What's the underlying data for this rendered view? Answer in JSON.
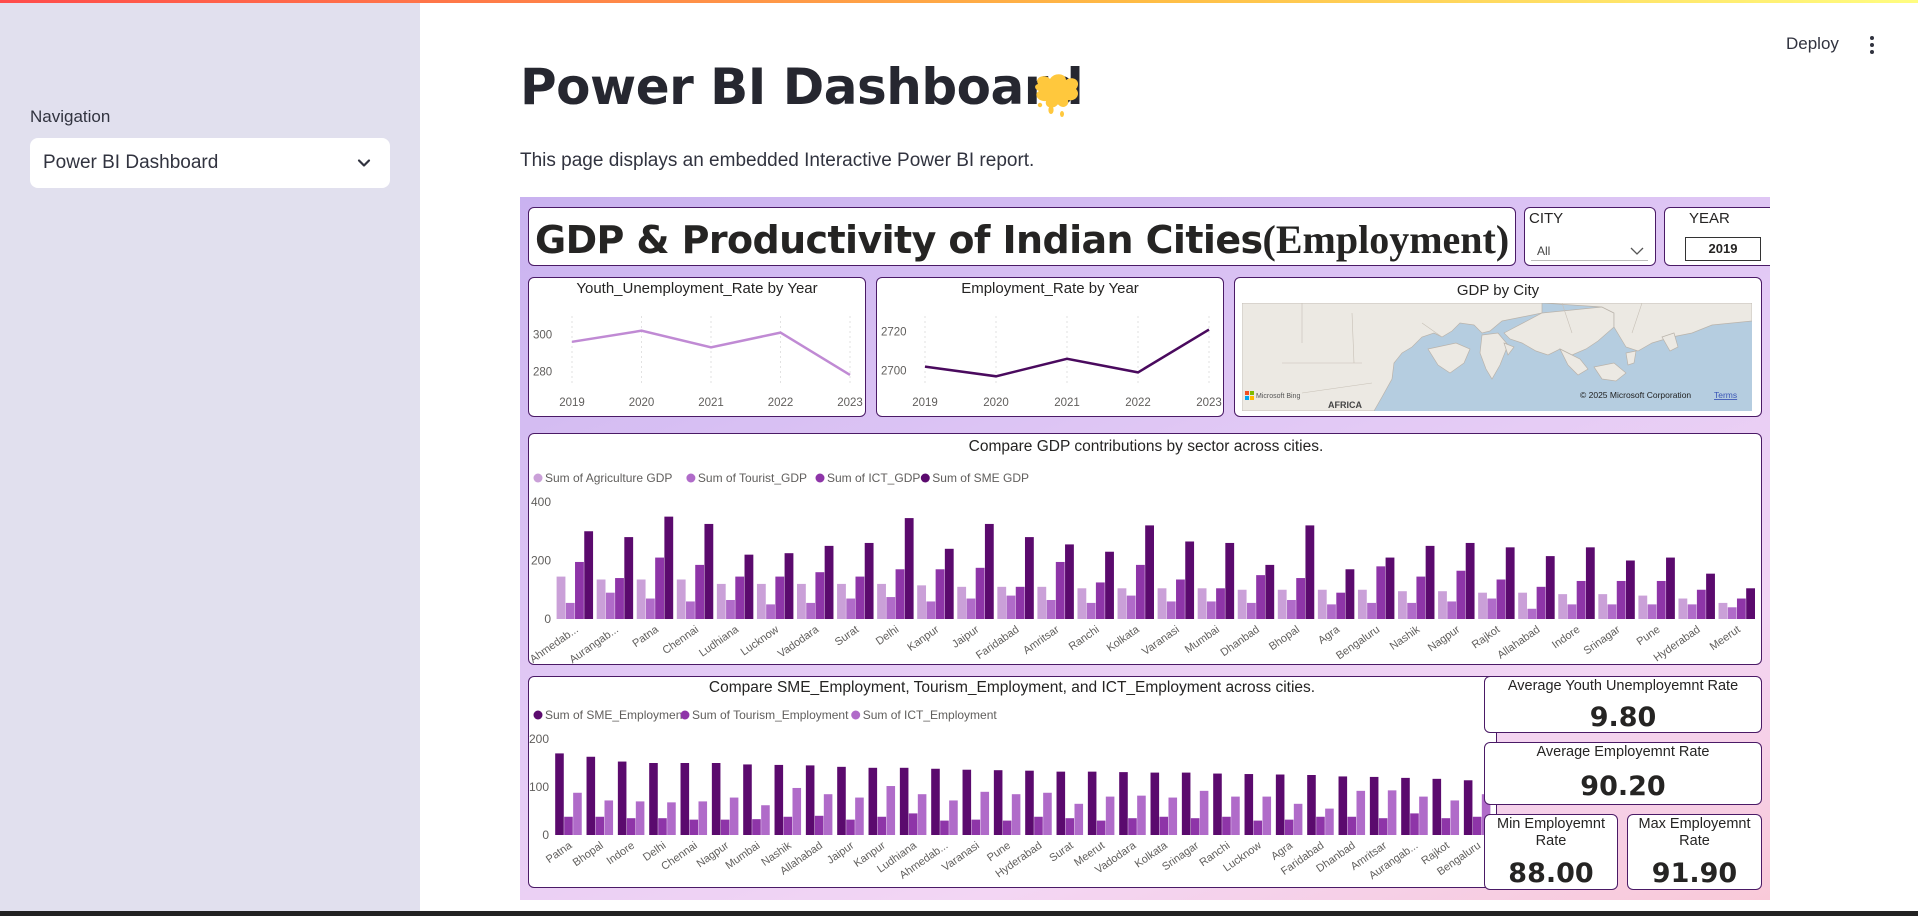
{
  "sidebar": {
    "nav_label": "Navigation",
    "selected_page": "Power BI Dashboard"
  },
  "header": {
    "deploy_label": "Deploy"
  },
  "main": {
    "title": "Power BI Dashboard",
    "description": "This page displays an embedded Interactive Power BI report."
  },
  "report": {
    "title_main": "GDP & Productivity of Indian Cities",
    "title_suffix": "(Employment)",
    "city_filter": {
      "label": "CITY",
      "value": "All"
    },
    "year_filter": {
      "label": "YEAR",
      "value": "2019"
    },
    "map": {
      "title": "GDP by City",
      "continent_label": "AFRICA",
      "bing_label": "Microsoft Bing",
      "copyright": "© 2025 Microsoft Corporation",
      "terms": "Terms"
    },
    "kpis": {
      "avg_youth_label": "Average Youth Unemployemnt Rate",
      "avg_youth_value": "9.80",
      "avg_emp_label": "Average Employemnt Rate",
      "avg_emp_value": "90.20",
      "min_emp_label": "Min Employemnt Rate",
      "min_emp_value": "88.00",
      "max_emp_label": "Max Employemnt Rate",
      "max_emp_value": "91.90"
    }
  },
  "colors": {
    "accent": "#4a1a66",
    "sme": "#5b0a6e",
    "ict": "#8e35a8",
    "tourist": "#b06bc9",
    "agri": "#caa0d8",
    "youth_line": "#c08ad4",
    "emp_line": "#4a0a5e"
  },
  "chart_data": [
    {
      "type": "line",
      "title": "Youth_Unemployment_Rate by Year",
      "x": [
        "2019",
        "2020",
        "2021",
        "2022",
        "2023"
      ],
      "values": [
        296,
        302,
        293,
        301,
        278
      ],
      "yticks": [
        280,
        300
      ],
      "ylim": [
        272,
        310
      ]
    },
    {
      "type": "line",
      "title": "Employment_Rate by Year",
      "x": [
        "2019",
        "2020",
        "2021",
        "2022",
        "2023"
      ],
      "values": [
        2702,
        2697,
        2706,
        2699,
        2721
      ],
      "yticks": [
        2700,
        2720
      ],
      "ylim": [
        2692,
        2728
      ]
    },
    {
      "type": "bar",
      "title": "Compare GDP contributions by sector across cities.",
      "categories": [
        "Ahmedab...",
        "Aurangab...",
        "Patna",
        "Chennai",
        "Ludhiana",
        "Lucknow",
        "Vadodara",
        "Surat",
        "Delhi",
        "Kanpur",
        "Jaipur",
        "Faridabad",
        "Amritsar",
        "Ranchi",
        "Kolkata",
        "Varanasi",
        "Mumbai",
        "Dhanbad",
        "Bhopal",
        "Agra",
        "Bengaluru",
        "Nashik",
        "Nagpur",
        "Rajkot",
        "Allahabad",
        "Indore",
        "Srinagar",
        "Pune",
        "Hyderabad",
        "Meerut"
      ],
      "series": [
        {
          "name": "Sum of Agriculture GDP",
          "values": [
            145,
            135,
            135,
            135,
            120,
            120,
            120,
            120,
            120,
            115,
            110,
            110,
            110,
            105,
            105,
            105,
            105,
            100,
            100,
            100,
            100,
            95,
            95,
            90,
            90,
            85,
            85,
            80,
            70,
            55
          ]
        },
        {
          "name": "Sum of Tourist_GDP",
          "values": [
            55,
            90,
            70,
            60,
            65,
            50,
            55,
            70,
            75,
            60,
            70,
            80,
            65,
            55,
            80,
            60,
            60,
            55,
            65,
            50,
            55,
            55,
            60,
            70,
            35,
            50,
            50,
            50,
            50,
            40
          ]
        },
        {
          "name": "Sum of ICT_GDP",
          "values": [
            195,
            140,
            210,
            185,
            145,
            145,
            160,
            145,
            170,
            170,
            175,
            110,
            195,
            125,
            185,
            135,
            105,
            150,
            140,
            90,
            180,
            145,
            165,
            135,
            110,
            130,
            130,
            130,
            100,
            70
          ]
        },
        {
          "name": "Sum of SME GDP",
          "values": [
            300,
            280,
            350,
            325,
            220,
            225,
            250,
            260,
            345,
            240,
            325,
            280,
            255,
            230,
            320,
            265,
            260,
            185,
            320,
            170,
            210,
            250,
            260,
            245,
            215,
            245,
            200,
            210,
            155,
            105
          ]
        }
      ],
      "yticks": [
        0,
        200,
        400
      ],
      "ylim": [
        0,
        400
      ]
    },
    {
      "type": "bar",
      "title": "Compare SME_Employment, Tourism_Employment, and ICT_Employment across cities.",
      "categories": [
        "Patna",
        "Bhopal",
        "Indore",
        "Delhi",
        "Chennai",
        "Nagpur",
        "Mumbai",
        "Nashik",
        "Allahabad",
        "Jaipur",
        "Kanpur",
        "Ludhiana",
        "Ahmedab...",
        "Varanasi",
        "Pune",
        "Hyderabad",
        "Surat",
        "Meerut",
        "Vadodara",
        "Kolkata",
        "Srinagar",
        "Ranchi",
        "Lucknow",
        "Agra",
        "Faridabad",
        "Dhanbad",
        "Amritsar",
        "Aurangab...",
        "Rajkot",
        "Bengaluru"
      ],
      "series": [
        {
          "name": "Sum of SME_Employment",
          "values": [
            170,
            163,
            153,
            150,
            150,
            150,
            147,
            146,
            145,
            142,
            140,
            140,
            138,
            136,
            135,
            134,
            132,
            132,
            131,
            130,
            130,
            128,
            127,
            126,
            125,
            122,
            121,
            119,
            117,
            114
          ]
        },
        {
          "name": "Sum of Tourism_Employment",
          "values": [
            38,
            38,
            35,
            35,
            32,
            32,
            33,
            38,
            40,
            32,
            38,
            45,
            30,
            32,
            30,
            38,
            35,
            30,
            35,
            38,
            35,
            38,
            30,
            32,
            38,
            38,
            35,
            45,
            35,
            38
          ]
        },
        {
          "name": "Sum of ICT_Employment",
          "values": [
            88,
            72,
            70,
            68,
            70,
            78,
            62,
            98,
            85,
            78,
            102,
            85,
            72,
            90,
            85,
            88,
            65,
            80,
            82,
            78,
            92,
            80,
            80,
            65,
            55,
            92,
            93,
            80,
            72,
            85
          ]
        }
      ],
      "yticks": [
        0,
        100,
        200
      ],
      "ylim": [
        0,
        200
      ]
    }
  ]
}
